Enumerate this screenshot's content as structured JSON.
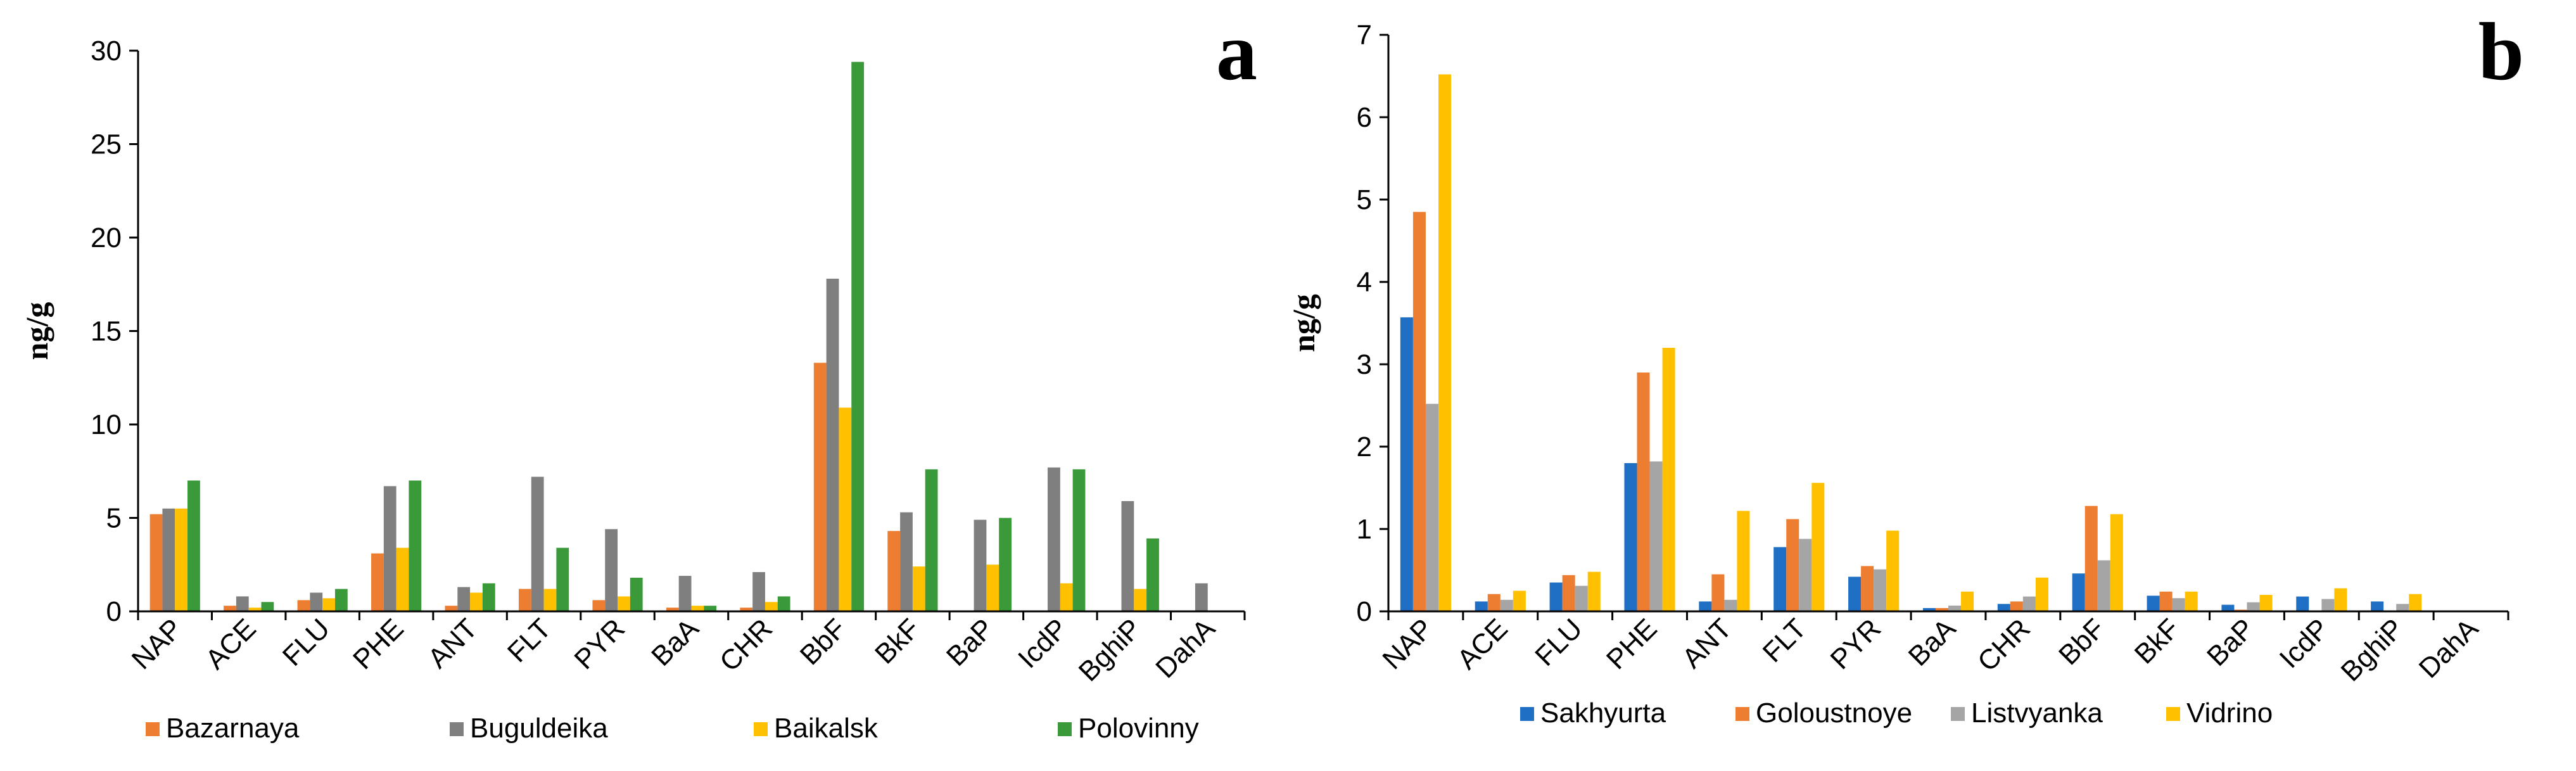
{
  "chart_data": [
    {
      "type": "bar",
      "panel": "a",
      "ylabel": "ng/g",
      "ylim": [
        0,
        30
      ],
      "yticks": [
        0,
        5,
        10,
        15,
        20,
        25,
        30
      ],
      "grid": false,
      "legend_position": "bottom",
      "categories": [
        "NAP",
        "ACE",
        "FLU",
        "PHE",
        "ANT",
        "FLT",
        "PYR",
        "BaA",
        "CHR",
        "BbF",
        "BkF",
        "BaP",
        "IcdP",
        "BghiP",
        "DahA"
      ],
      "series": [
        {
          "name": "Bazarnaya",
          "color": "#ED7D31",
          "values": [
            5.2,
            0.3,
            0.6,
            3.1,
            0.3,
            1.2,
            0.6,
            0.2,
            0.2,
            13.3,
            4.3,
            0,
            0,
            0,
            0
          ]
        },
        {
          "name": "Buguldeika",
          "color": "#7F7F7F",
          "values": [
            5.5,
            0.8,
            1.0,
            6.7,
            1.3,
            7.2,
            4.4,
            1.9,
            2.1,
            17.8,
            5.3,
            4.9,
            7.7,
            5.9,
            1.5
          ]
        },
        {
          "name": "Baikalsk",
          "color": "#FFC000",
          "values": [
            5.5,
            0.2,
            0.7,
            3.4,
            1.0,
            1.2,
            0.8,
            0.3,
            0.5,
            10.9,
            2.4,
            2.5,
            1.5,
            1.2,
            0
          ]
        },
        {
          "name": "Polovinny",
          "color": "#3A9A3A",
          "values": [
            7.0,
            0.5,
            1.2,
            7.0,
            1.5,
            3.4,
            1.8,
            0.3,
            0.8,
            29.4,
            7.6,
            5.0,
            7.6,
            3.9,
            0
          ]
        }
      ]
    },
    {
      "type": "bar",
      "panel": "b",
      "ylabel": "ng/g",
      "ylim": [
        0,
        7
      ],
      "yticks": [
        0,
        1,
        2,
        3,
        4,
        5,
        6,
        7
      ],
      "grid": false,
      "legend_position": "bottom",
      "categories": [
        "NAP",
        "ACE",
        "FLU",
        "PHE",
        "ANT",
        "FLT",
        "PYR",
        "BaA",
        "CHR",
        "BbF",
        "BkF",
        "BaP",
        "IcdP",
        "BghiP",
        "DahA"
      ],
      "series": [
        {
          "name": "Sakhyurta",
          "color": "#1F6FC5",
          "values": [
            3.57,
            0.12,
            0.35,
            1.8,
            0.12,
            0.78,
            0.42,
            0.04,
            0.09,
            0.46,
            0.19,
            0.08,
            0.18,
            0.12,
            0
          ]
        },
        {
          "name": "Goloustnoye",
          "color": "#ED7D31",
          "values": [
            4.85,
            0.21,
            0.44,
            2.9,
            0.45,
            1.12,
            0.55,
            0.04,
            0.12,
            1.28,
            0.24,
            0.02,
            0.01,
            0.01,
            0
          ]
        },
        {
          "name": "Listvyanka",
          "color": "#A5A5A5",
          "values": [
            2.52,
            0.14,
            0.31,
            1.82,
            0.14,
            0.88,
            0.51,
            0.07,
            0.18,
            0.62,
            0.16,
            0.11,
            0.15,
            0.09,
            0
          ]
        },
        {
          "name": "Vidrino",
          "color": "#FFC000",
          "values": [
            6.52,
            0.25,
            0.48,
            3.2,
            1.22,
            1.56,
            0.98,
            0.24,
            0.41,
            1.18,
            0.24,
            0.2,
            0.28,
            0.21,
            0
          ]
        }
      ]
    }
  ]
}
